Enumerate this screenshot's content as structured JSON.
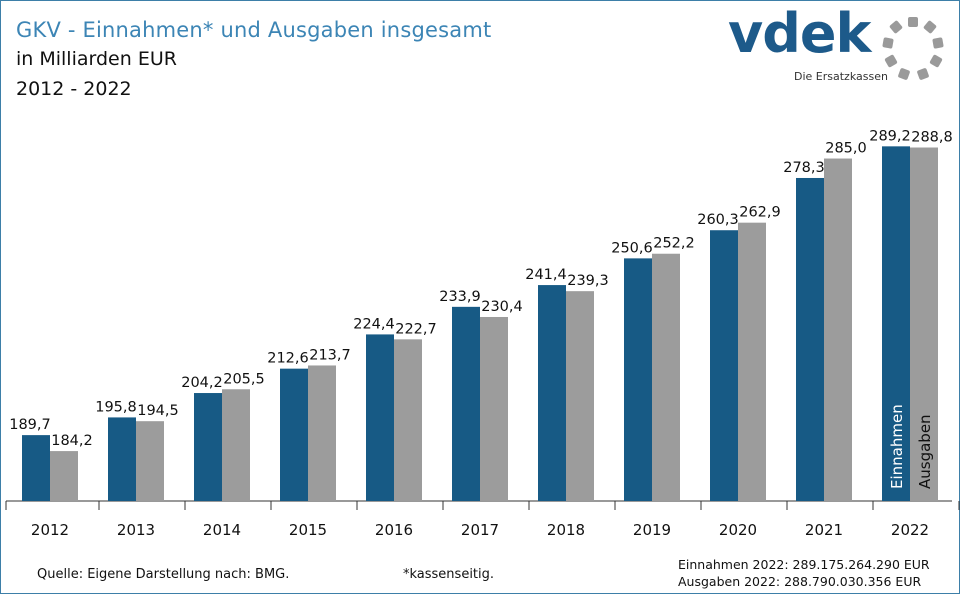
{
  "header": {
    "title": "GKV - Einnahmen* und Ausgaben insgesamt",
    "subtitle": "in Milliarden EUR",
    "period": "2012 - 2022"
  },
  "logo": {
    "word": "vdek",
    "tagline": "Die Ersatzkassen"
  },
  "footer": {
    "source": "Quelle: Eigene Darstellung nach: BMG.",
    "footnote": "*kassenseitig.",
    "totals_income": "Einnahmen 2022: 289.175.264.290  EUR",
    "totals_expense": "Ausgaben 2022: 288.790.030.356  EUR"
  },
  "colors": {
    "income": "#175a85",
    "expense": "#9c9c9c",
    "title": "#3c85b5"
  },
  "chart_data": {
    "type": "bar",
    "title": "GKV - Einnahmen* und Ausgaben insgesamt",
    "ylabel": "in Milliarden EUR",
    "xlabel": "",
    "ylim": [
      167.0,
      300.0
    ],
    "grid": false,
    "categories": [
      "2012",
      "2013",
      "2014",
      "2015",
      "2016",
      "2017",
      "2018",
      "2019",
      "2020",
      "2021",
      "2022"
    ],
    "series": [
      {
        "name": "Einnahmen",
        "values": [
          189.7,
          195.8,
          204.2,
          212.6,
          224.4,
          233.9,
          241.4,
          250.6,
          260.3,
          278.3,
          289.2
        ],
        "labels": [
          "189,7",
          "195,8",
          "204,2",
          "212,6",
          "224,4",
          "233,9",
          "241,4",
          "250,6",
          "260,3",
          "278,3",
          "289,2"
        ]
      },
      {
        "name": "Ausgaben",
        "values": [
          184.2,
          194.5,
          205.5,
          213.7,
          222.7,
          230.4,
          239.3,
          252.2,
          262.9,
          285.0,
          288.8
        ],
        "labels": [
          "184,2",
          "194,5",
          "205,5",
          "213,7",
          "222,7",
          "230,4",
          "239,3",
          "252,2",
          "262,9",
          "285,0",
          "288,8"
        ]
      }
    ],
    "legend": "inside-last-bars"
  }
}
